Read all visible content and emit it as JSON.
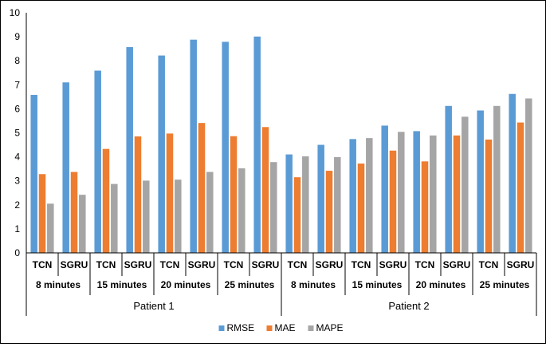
{
  "chart_data": {
    "type": "bar",
    "title": "",
    "xlabel": "",
    "ylabel": "",
    "ylim": [
      0,
      10
    ],
    "yticks": [
      "0",
      "1",
      "2",
      "3",
      "4",
      "5",
      "6",
      "7",
      "8",
      "9",
      "10"
    ],
    "grid": false,
    "legend_position": "bottom",
    "categories": [
      "TCN",
      "SGRU",
      "TCN",
      "SGRU",
      "TCN",
      "SGRU",
      "TCN",
      "SGRU",
      "TCN",
      "SGRU",
      "TCN",
      "SGRU",
      "TCN",
      "SGRU",
      "TCN",
      "SGRU"
    ],
    "horizons": [
      "8 minutes",
      "15 minutes",
      "20 minutes",
      "25 minutes",
      "8 minutes",
      "15 minutes",
      "20 minutes",
      "25 minutes"
    ],
    "patients": [
      "Patient 1",
      "Patient 2"
    ],
    "series": [
      {
        "name": "RMSE",
        "color": "#5B9BD5",
        "values": [
          6.58,
          7.1,
          7.59,
          8.57,
          8.22,
          8.88,
          8.79,
          9.01,
          4.1,
          4.5,
          4.74,
          5.3,
          5.07,
          6.12,
          5.93,
          6.62
        ]
      },
      {
        "name": "MAE",
        "color": "#ED7D31",
        "values": [
          3.28,
          3.37,
          4.33,
          4.85,
          4.97,
          5.41,
          4.86,
          5.24,
          3.15,
          3.42,
          3.72,
          4.26,
          3.81,
          4.89,
          4.72,
          5.43
        ]
      },
      {
        "name": "MAPE",
        "color": "#A5A5A5",
        "values": [
          2.05,
          2.42,
          2.87,
          3.01,
          3.05,
          3.37,
          3.52,
          3.78,
          4.02,
          3.99,
          4.78,
          5.04,
          4.89,
          5.67,
          6.12,
          6.43
        ]
      }
    ]
  }
}
